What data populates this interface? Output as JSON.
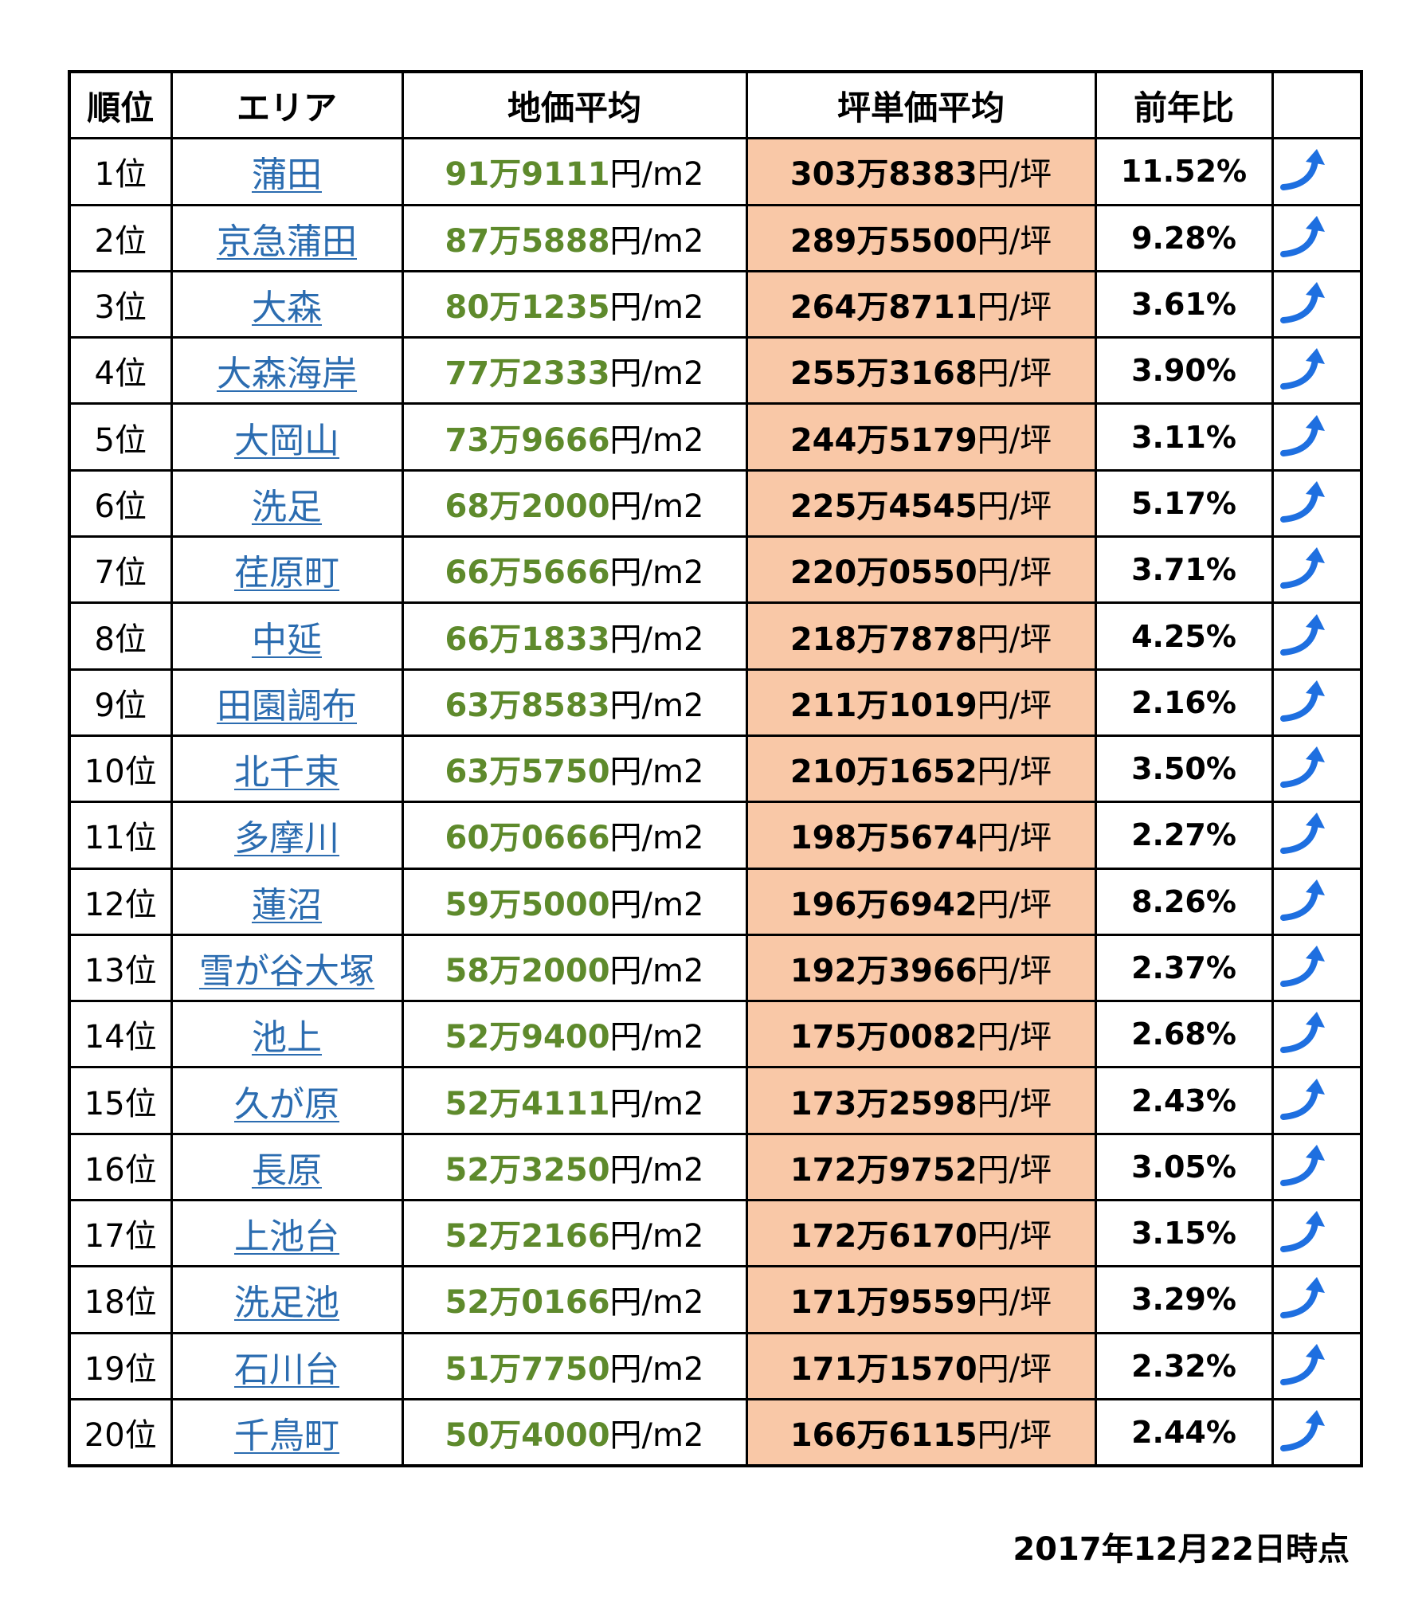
{
  "header": {
    "rank": "順位",
    "area": "エリア",
    "land_avg": "地価平均",
    "tsubo_avg": "坪単価平均",
    "yoy": "前年比",
    "blank": ""
  },
  "units": {
    "land": "円/m2",
    "tsubo": "円/坪"
  },
  "icon": "trend-up-arrow-icon",
  "colors": {
    "area_link": "#2b6cb0",
    "land_value": "#5e8a2c",
    "tsubo_bg": "#f9c8a7",
    "arrow": "#1e6fe0"
  },
  "rows": [
    {
      "rank": "1位",
      "area": "蒲田",
      "land": "91万9111",
      "tsubo": "303万8383",
      "yoy": "11.52%"
    },
    {
      "rank": "2位",
      "area": "京急蒲田",
      "land": "87万5888",
      "tsubo": "289万5500",
      "yoy": "9.28%"
    },
    {
      "rank": "3位",
      "area": "大森",
      "land": "80万1235",
      "tsubo": "264万8711",
      "yoy": "3.61%"
    },
    {
      "rank": "4位",
      "area": "大森海岸",
      "land": "77万2333",
      "tsubo": "255万3168",
      "yoy": "3.90%"
    },
    {
      "rank": "5位",
      "area": "大岡山",
      "land": "73万9666",
      "tsubo": "244万5179",
      "yoy": "3.11%"
    },
    {
      "rank": "6位",
      "area": "洗足",
      "land": "68万2000",
      "tsubo": "225万4545",
      "yoy": "5.17%"
    },
    {
      "rank": "7位",
      "area": "荏原町",
      "land": "66万5666",
      "tsubo": "220万0550",
      "yoy": "3.71%"
    },
    {
      "rank": "8位",
      "area": "中延",
      "land": "66万1833",
      "tsubo": "218万7878",
      "yoy": "4.25%"
    },
    {
      "rank": "9位",
      "area": "田園調布",
      "land": "63万8583",
      "tsubo": "211万1019",
      "yoy": "2.16%"
    },
    {
      "rank": "10位",
      "area": "北千束",
      "land": "63万5750",
      "tsubo": "210万1652",
      "yoy": "3.50%"
    },
    {
      "rank": "11位",
      "area": "多摩川",
      "land": "60万0666",
      "tsubo": "198万5674",
      "yoy": "2.27%"
    },
    {
      "rank": "12位",
      "area": "蓮沼",
      "land": "59万5000",
      "tsubo": "196万6942",
      "yoy": "8.26%"
    },
    {
      "rank": "13位",
      "area": "雪が谷大塚",
      "land": "58万2000",
      "tsubo": "192万3966",
      "yoy": "2.37%"
    },
    {
      "rank": "14位",
      "area": "池上",
      "land": "52万9400",
      "tsubo": "175万0082",
      "yoy": "2.68%"
    },
    {
      "rank": "15位",
      "area": "久が原",
      "land": "52万4111",
      "tsubo": "173万2598",
      "yoy": "2.43%"
    },
    {
      "rank": "16位",
      "area": "長原",
      "land": "52万3250",
      "tsubo": "172万9752",
      "yoy": "3.05%"
    },
    {
      "rank": "17位",
      "area": "上池台",
      "land": "52万2166",
      "tsubo": "172万6170",
      "yoy": "3.15%"
    },
    {
      "rank": "18位",
      "area": "洗足池",
      "land": "52万0166",
      "tsubo": "171万9559",
      "yoy": "3.29%"
    },
    {
      "rank": "19位",
      "area": "石川台",
      "land": "51万7750",
      "tsubo": "171万1570",
      "yoy": "2.32%"
    },
    {
      "rank": "20位",
      "area": "千鳥町",
      "land": "50万4000",
      "tsubo": "166万6115",
      "yoy": "2.44%"
    }
  ],
  "footnote": "2017年12月22日時点"
}
